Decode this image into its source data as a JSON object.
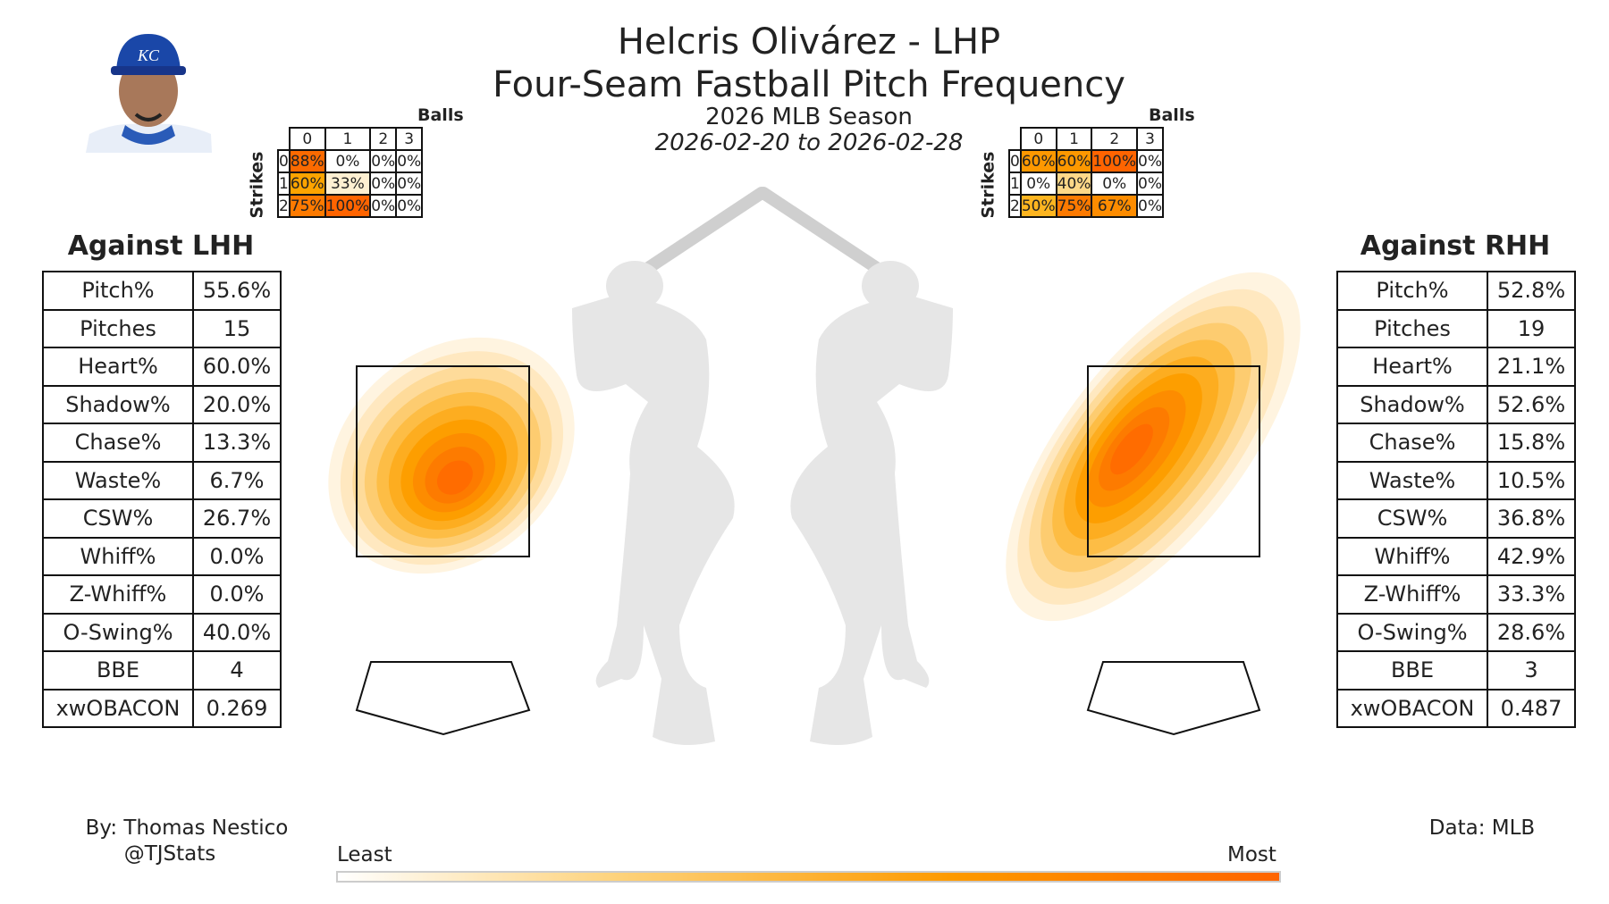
{
  "header": {
    "title": "Helcris Olivárez - LHP",
    "subtitle": "Four-Seam Fastball Pitch Frequency",
    "season": "2026 MLB Season",
    "date_range": "2026-02-20 to 2026-02-28"
  },
  "count_tables": {
    "balls_label": "Balls",
    "strikes_label": "Strikes",
    "balls": [
      "0",
      "1",
      "2",
      "3"
    ],
    "strikes": [
      "0",
      "1",
      "2"
    ],
    "lhh": {
      "cells": [
        [
          "88%",
          "0%",
          "0%",
          "0%"
        ],
        [
          "60%",
          "33%",
          "0%",
          "0%"
        ],
        [
          "75%",
          "100%",
          "0%",
          "0%"
        ]
      ],
      "colors": [
        [
          "#fb6a00",
          "#ffffff",
          "#ffffff",
          "#ffffff"
        ],
        [
          "#fda400",
          "#fef0d2",
          "#ffffff",
          "#ffffff"
        ],
        [
          "#fd7a00",
          "#ff6400",
          "#ffffff",
          "#ffffff"
        ]
      ]
    },
    "rhh": {
      "cells": [
        [
          "60%",
          "60%",
          "100%",
          "0%"
        ],
        [
          "0%",
          "40%",
          "0%",
          "0%"
        ],
        [
          "50%",
          "75%",
          "67%",
          "0%"
        ]
      ],
      "colors": [
        [
          "#fd9800",
          "#fd9800",
          "#ff6400",
          "#ffffff"
        ],
        [
          "#ffffff",
          "#fed888",
          "#ffffff",
          "#ffffff"
        ],
        [
          "#fdb520",
          "#fd7a00",
          "#fd8c00",
          "#ffffff"
        ]
      ]
    }
  },
  "lhh": {
    "title": "Against LHH",
    "stats": [
      [
        "Pitch%",
        "55.6%"
      ],
      [
        "Pitches",
        "15"
      ],
      [
        "Heart%",
        "60.0%"
      ],
      [
        "Shadow%",
        "20.0%"
      ],
      [
        "Chase%",
        "13.3%"
      ],
      [
        "Waste%",
        "6.7%"
      ],
      [
        "CSW%",
        "26.7%"
      ],
      [
        "Whiff%",
        "0.0%"
      ],
      [
        "Z-Whiff%",
        "0.0%"
      ],
      [
        "O-Swing%",
        "40.0%"
      ],
      [
        "BBE",
        "4"
      ],
      [
        "xwOBACON",
        "0.269"
      ]
    ]
  },
  "rhh": {
    "title": "Against RHH",
    "stats": [
      [
        "Pitch%",
        "52.8%"
      ],
      [
        "Pitches",
        "19"
      ],
      [
        "Heart%",
        "21.1%"
      ],
      [
        "Shadow%",
        "52.6%"
      ],
      [
        "Chase%",
        "15.8%"
      ],
      [
        "Waste%",
        "10.5%"
      ],
      [
        "CSW%",
        "36.8%"
      ],
      [
        "Whiff%",
        "42.9%"
      ],
      [
        "Z-Whiff%",
        "33.3%"
      ],
      [
        "O-Swing%",
        "28.6%"
      ],
      [
        "BBE",
        "3"
      ],
      [
        "xwOBACON",
        "0.487"
      ]
    ]
  },
  "colorbar": {
    "least": "Least",
    "most": "Most",
    "colors": [
      "#ffffff",
      "#fdd27a",
      "#fd9a00",
      "#ff6400"
    ]
  },
  "footer": {
    "author": "By: Thomas Nestico",
    "handle": "@TJStats",
    "source": "Data: MLB"
  },
  "logo": {
    "cap_text": "KC"
  }
}
